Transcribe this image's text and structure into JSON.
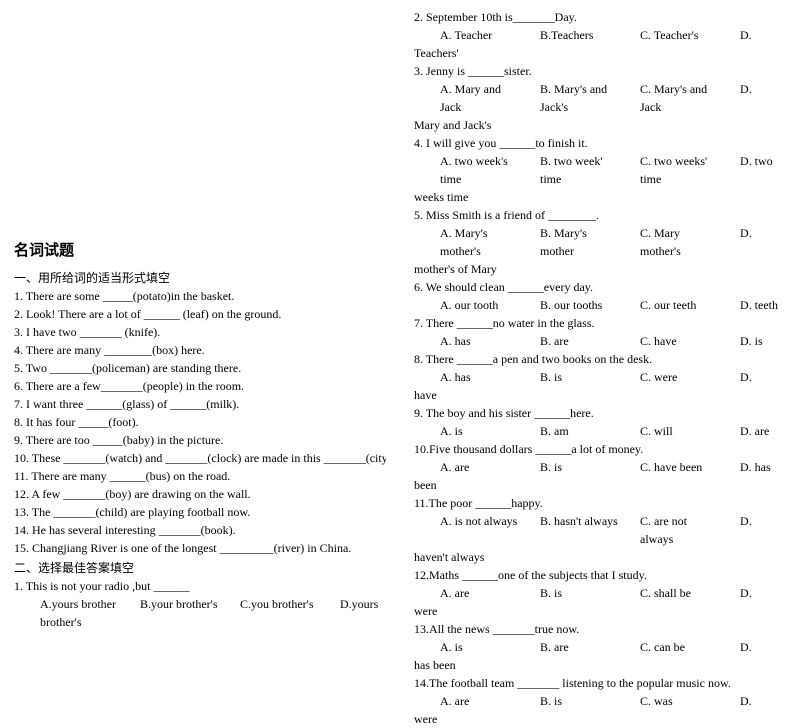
{
  "title": "名词试题",
  "section1": {
    "heading": "一、用所给词的适当形式填空",
    "items": [
      "1.  There are some _____(potato)in the basket.",
      "2.  Look! There are a lot of ______ (leaf) on the ground.",
      "3.  I have two _______ (knife).",
      "4.  There are many ________(box) here.",
      "5.  Two _______(policeman) are standing there.",
      "6.  There are a few_______(people) in the room.",
      "7.  I want three ______(glass) of ______(milk).",
      "8.  It has four _____(foot).",
      "9.  There are too _____(baby) in the picture.",
      "10. These _______(watch) and _______(clock) are made in this _______(city).",
      "11. There are many ______(bus) on the road.",
      "12. A few _______(boy) are drawing on the wall.",
      "13. The _______(child) are playing football now.",
      "14. He has several interesting _______(book).",
      "15. Changjiang River is one of the longest _________(river) in China."
    ]
  },
  "section2": {
    "heading": "二、选择最佳答案填空",
    "q1": {
      "stem": "1. This is not your radio ,but ______",
      "A": "A.yours brother",
      "B": "B.your brother's",
      "C": "C.you brother's",
      "D": "D.yours",
      "spill": "brother's"
    }
  },
  "right": {
    "q2": {
      "stem": "2. September 10th is_______Day.",
      "A": "A. Teacher",
      "B": "B.Teachers",
      "C": "C. Teacher's",
      "D": "D.",
      "spill": "Teachers'"
    },
    "q3": {
      "stem": "3. Jenny is ______sister.",
      "A": "A. Mary and Jack",
      "B": "B. Mary's and Jack's",
      "C": "C. Mary's and Jack",
      "D": "D.",
      "spill": "Mary and Jack's"
    },
    "q4": {
      "stem": "4. I will give you ______to finish it.",
      "A": "A. two week's time",
      "B": "B. two week' time",
      "C": "C. two weeks' time",
      "D": "D. two",
      "spill": "weeks time"
    },
    "q5": {
      "stem": "5. Miss Smith is a friend of ________.",
      "A": "A. Mary's  mother's",
      "B": "B. Mary's  mother",
      "C": "C. Mary  mother's",
      "D": "D.",
      "spill": "mother's of Mary"
    },
    "q6": {
      "stem": "6. We should clean ______every day.",
      "A": "A. our tooth",
      "B": "B. our tooths",
      "C": "C. our teeth",
      "D": "D. teeth"
    },
    "q7": {
      "stem": "7. There ______no water in the glass.",
      "A": "A. has",
      "B": "B. are",
      "C": "C. have",
      "D": "D. is"
    },
    "q8": {
      "stem": "8. There ______a pen and two books on the desk.",
      "A": "A. has",
      "B": "B. is",
      "C": "C. were",
      "D": "D.",
      "spill": "have"
    },
    "q9": {
      "stem": "9. The boy and his sister ______here.",
      "A": "A. is",
      "B": "B. am",
      "C": "C. will",
      "D": "D. are"
    },
    "q10": {
      "stem": "10.Five thousand dollars ______a lot of money.",
      "A": "A. are",
      "B": "B. is",
      "C": "C. have been",
      "D": "D. has",
      "spill": "been"
    },
    "q11": {
      "stem": "11.The poor ______happy.",
      "A": "A. is not always",
      "B": "B. hasn't   always",
      "C": "C. are not always",
      "D": "D.",
      "spill": "haven't always"
    },
    "q12": {
      "stem": "12.Maths ______one of the subjects that I study.",
      "A": "A. are",
      "B": "B. is",
      "C": "C. shall be",
      "D": "D.",
      "spill": "were"
    },
    "q13": {
      "stem": "13.All the news _______true now.",
      "A": "A. is",
      "B": "B. are",
      "C": "C. can be",
      "D": "D.",
      "spill": "has been"
    },
    "q14": {
      "stem": "14.The football team _______ listening to the popular music now.",
      "A": "A. are",
      "B": "B. is",
      "C": "C. was",
      "D": "D.",
      "spill": "were"
    }
  }
}
